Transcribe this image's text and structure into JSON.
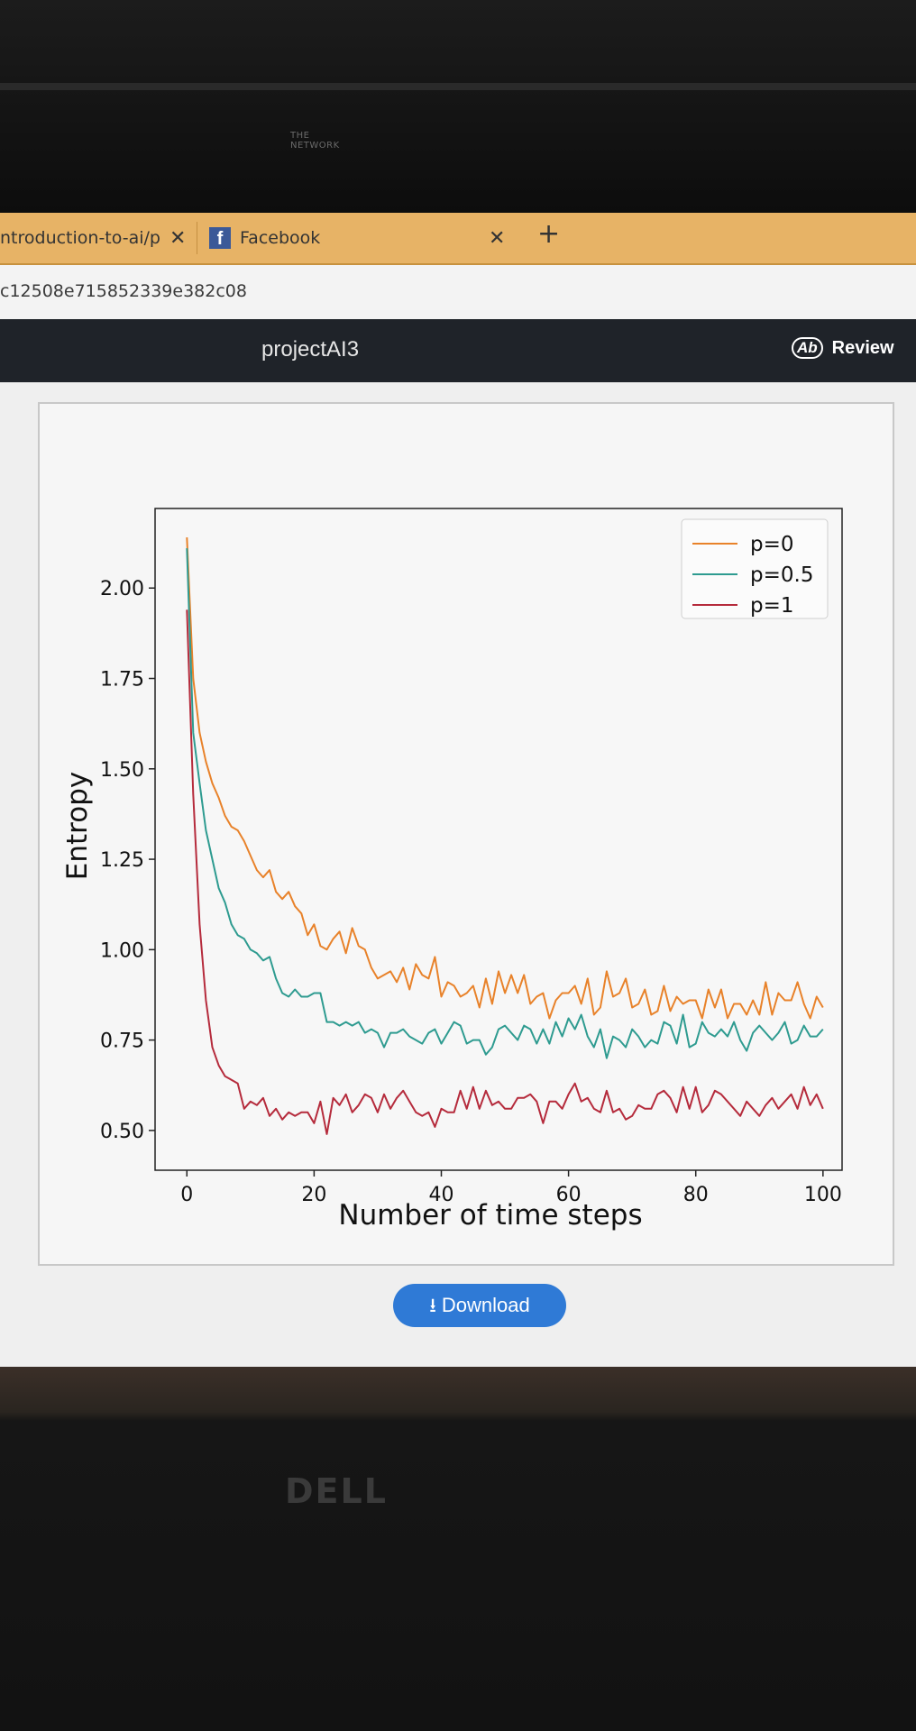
{
  "laptop": {
    "top_brand": "THE\nNETWORK",
    "bottom_brand": "DELL"
  },
  "browser": {
    "tabs": [
      {
        "label": "ntroduction-to-ai/p",
        "close": "✕"
      },
      {
        "label": "Facebook",
        "close": "✕"
      }
    ],
    "new_tab": "+",
    "url": "c12508e715852339e382c08"
  },
  "app": {
    "title": "projectAI3",
    "review_icon": "Ab",
    "review_label": "Review",
    "download_label": "Download",
    "download_icon": "download-icon"
  },
  "chart_data": {
    "type": "line",
    "xlabel": "Number of time steps",
    "ylabel": "Entropy",
    "xlim": [
      -5,
      103
    ],
    "ylim": [
      0.39,
      2.22
    ],
    "xticks": [
      0,
      20,
      40,
      60,
      80,
      100
    ],
    "yticks": [
      0.5,
      0.75,
      1.0,
      1.25,
      1.5,
      1.75,
      2.0
    ],
    "ytick_labels": [
      "0.50",
      "0.75",
      "1.00",
      "1.25",
      "1.50",
      "1.75",
      "2.00"
    ],
    "xtick_labels": [
      "0",
      "20",
      "40",
      "60",
      "80",
      "100"
    ],
    "legend": "top-right",
    "grid": false,
    "series": [
      {
        "name": "p=0",
        "color": "#e8822a",
        "values": [
          2.14,
          1.75,
          1.6,
          1.52,
          1.46,
          1.42,
          1.37,
          1.34,
          1.33,
          1.3,
          1.26,
          1.22,
          1.2,
          1.22,
          1.16,
          1.14,
          1.16,
          1.12,
          1.1,
          1.04,
          1.07,
          1.01,
          1.0,
          1.03,
          1.05,
          0.99,
          1.06,
          1.01,
          1.0,
          0.95,
          0.92,
          0.93,
          0.94,
          0.91,
          0.95,
          0.89,
          0.96,
          0.93,
          0.92,
          0.98,
          0.87,
          0.91,
          0.9,
          0.87,
          0.88,
          0.9,
          0.84,
          0.92,
          0.85,
          0.94,
          0.88,
          0.93,
          0.88,
          0.93,
          0.85,
          0.87,
          0.88,
          0.81,
          0.86,
          0.88,
          0.88,
          0.9,
          0.85,
          0.92,
          0.82,
          0.84,
          0.94,
          0.87,
          0.88,
          0.92,
          0.84,
          0.85,
          0.89,
          0.82,
          0.83,
          0.9,
          0.83,
          0.87,
          0.85,
          0.86,
          0.86,
          0.81,
          0.89,
          0.84,
          0.89,
          0.81,
          0.85,
          0.85,
          0.82,
          0.86,
          0.82,
          0.91,
          0.82,
          0.88,
          0.86,
          0.86,
          0.91,
          0.85,
          0.81,
          0.87,
          0.84
        ]
      },
      {
        "name": "p=0.5",
        "color": "#2e9b90",
        "values": [
          2.11,
          1.6,
          1.46,
          1.33,
          1.25,
          1.17,
          1.13,
          1.07,
          1.04,
          1.03,
          1.0,
          0.99,
          0.97,
          0.98,
          0.92,
          0.88,
          0.87,
          0.89,
          0.87,
          0.87,
          0.88,
          0.88,
          0.8,
          0.8,
          0.79,
          0.8,
          0.79,
          0.8,
          0.77,
          0.78,
          0.77,
          0.73,
          0.77,
          0.77,
          0.78,
          0.76,
          0.75,
          0.74,
          0.77,
          0.78,
          0.74,
          0.77,
          0.8,
          0.79,
          0.74,
          0.75,
          0.75,
          0.71,
          0.73,
          0.78,
          0.79,
          0.77,
          0.75,
          0.79,
          0.78,
          0.74,
          0.78,
          0.74,
          0.8,
          0.76,
          0.81,
          0.78,
          0.82,
          0.76,
          0.73,
          0.78,
          0.7,
          0.76,
          0.75,
          0.73,
          0.78,
          0.76,
          0.73,
          0.75,
          0.74,
          0.8,
          0.79,
          0.74,
          0.82,
          0.73,
          0.74,
          0.8,
          0.77,
          0.76,
          0.78,
          0.76,
          0.8,
          0.75,
          0.72,
          0.77,
          0.79,
          0.77,
          0.75,
          0.77,
          0.8,
          0.74,
          0.75,
          0.79,
          0.76,
          0.76,
          0.78
        ]
      },
      {
        "name": "p=1",
        "color": "#b52b3c",
        "values": [
          1.94,
          1.43,
          1.07,
          0.86,
          0.73,
          0.68,
          0.65,
          0.64,
          0.63,
          0.56,
          0.58,
          0.57,
          0.59,
          0.54,
          0.56,
          0.53,
          0.55,
          0.54,
          0.55,
          0.55,
          0.52,
          0.58,
          0.49,
          0.59,
          0.57,
          0.6,
          0.55,
          0.57,
          0.6,
          0.59,
          0.55,
          0.6,
          0.56,
          0.59,
          0.61,
          0.58,
          0.55,
          0.54,
          0.55,
          0.51,
          0.56,
          0.55,
          0.55,
          0.61,
          0.56,
          0.62,
          0.56,
          0.61,
          0.57,
          0.58,
          0.56,
          0.56,
          0.59,
          0.59,
          0.6,
          0.58,
          0.52,
          0.58,
          0.58,
          0.56,
          0.6,
          0.63,
          0.58,
          0.59,
          0.56,
          0.55,
          0.61,
          0.55,
          0.56,
          0.53,
          0.54,
          0.57,
          0.56,
          0.56,
          0.6,
          0.61,
          0.59,
          0.55,
          0.62,
          0.56,
          0.62,
          0.55,
          0.57,
          0.61,
          0.6,
          0.58,
          0.56,
          0.54,
          0.58,
          0.56,
          0.54,
          0.57,
          0.59,
          0.56,
          0.58,
          0.6,
          0.56,
          0.62,
          0.57,
          0.6,
          0.56
        ]
      }
    ]
  }
}
